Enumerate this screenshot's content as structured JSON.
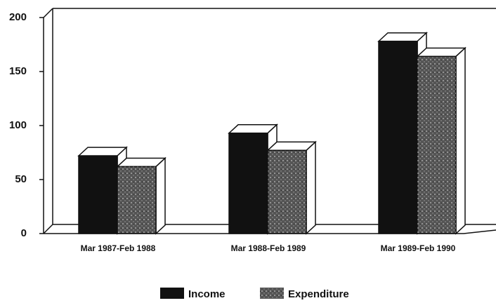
{
  "chart_data": {
    "type": "bar3d",
    "categories": [
      "Mar 1987-Feb 1988",
      "Mar 1988-Feb 1989",
      "Mar 1989-Feb 1990"
    ],
    "series": [
      {
        "name": "Income",
        "color": "#111111",
        "values": [
          72,
          93,
          178
        ]
      },
      {
        "name": "Expenditure",
        "color": "#555555",
        "values": [
          62,
          77,
          164
        ]
      }
    ],
    "ylim": [
      0,
      200
    ],
    "yticks": [
      0,
      50,
      100,
      150,
      200
    ]
  }
}
